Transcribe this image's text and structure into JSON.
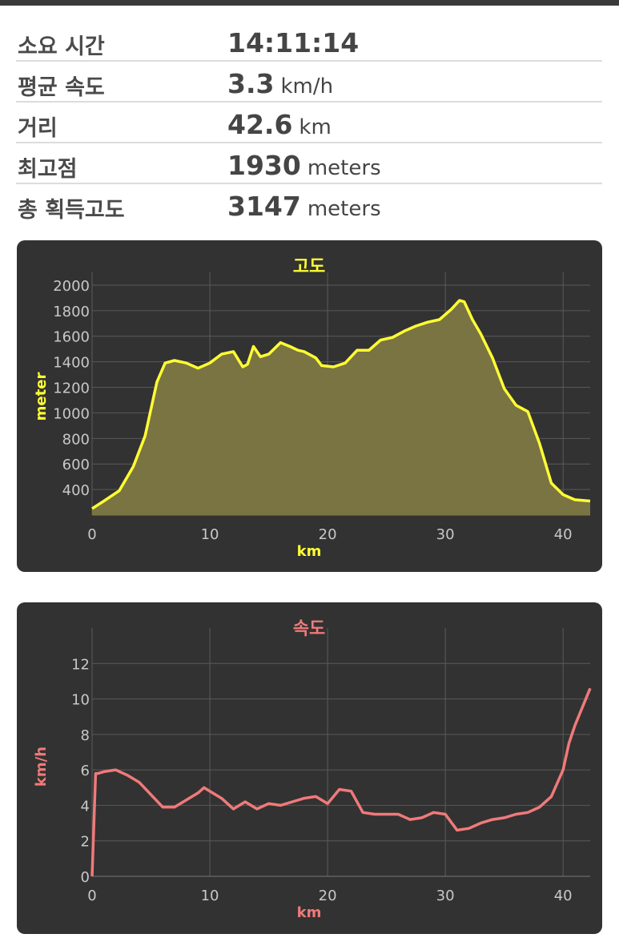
{
  "stats": [
    {
      "label": "소요 시간",
      "value": "14:11:14",
      "unit": ""
    },
    {
      "label": "평균 속도",
      "value": "3.3",
      "unit": "km/h"
    },
    {
      "label": "거리",
      "value": "42.6",
      "unit": "km"
    },
    {
      "label": "최고점",
      "value": "1930",
      "unit": "meters"
    },
    {
      "label": "총 획득고도",
      "value": "3147",
      "unit": "meters"
    }
  ],
  "colors": {
    "elevation_line": "#ffff33",
    "elevation_fill": "#7a7443",
    "speed_line": "#f07a7a",
    "panel_bg": "#323232"
  },
  "chart_data": [
    {
      "type": "area",
      "title": "고도",
      "xlabel": "km",
      "ylabel": "meter",
      "xlim": [
        0,
        42.3
      ],
      "ylim": [
        200,
        2100
      ],
      "xticks": [
        0,
        10,
        20,
        30,
        40
      ],
      "yticks": [
        400,
        600,
        800,
        1000,
        1200,
        1400,
        1600,
        1800,
        2000
      ],
      "grid": true,
      "x": [
        0,
        1,
        2.3,
        3.5,
        4.5,
        5.5,
        6.2,
        7,
        8,
        9,
        10,
        11,
        12,
        12.8,
        13.2,
        13.7,
        14.3,
        15,
        16,
        16.8,
        17.5,
        18,
        19,
        19.5,
        20.5,
        21.5,
        22.5,
        23.5,
        24.5,
        25.5,
        26.5,
        27.5,
        28.5,
        29.5,
        30.5,
        31.2,
        31.6,
        32.3,
        33,
        34,
        35,
        36,
        37,
        38,
        39,
        40,
        41,
        42.3
      ],
      "y": [
        250,
        310,
        390,
        580,
        820,
        1240,
        1390,
        1410,
        1390,
        1350,
        1390,
        1460,
        1480,
        1360,
        1380,
        1520,
        1440,
        1460,
        1550,
        1520,
        1490,
        1480,
        1430,
        1370,
        1360,
        1390,
        1490,
        1490,
        1570,
        1590,
        1640,
        1680,
        1710,
        1730,
        1810,
        1880,
        1870,
        1730,
        1620,
        1430,
        1190,
        1060,
        1010,
        760,
        450,
        360,
        320,
        310
      ]
    },
    {
      "type": "line",
      "title": "속도",
      "xlabel": "km",
      "ylabel": "km/h",
      "xlim": [
        0,
        42.3
      ],
      "ylim": [
        0,
        14
      ],
      "xticks": [
        0,
        10,
        20,
        30,
        40
      ],
      "yticks": [
        0,
        2,
        4,
        6,
        8,
        10,
        12
      ],
      "grid": true,
      "x": [
        0,
        0.3,
        0.5,
        1,
        2,
        3,
        4,
        5,
        6,
        7,
        8,
        9,
        9.5,
        10,
        11,
        12,
        13,
        14,
        15,
        16,
        17,
        18,
        19,
        20,
        21,
        22,
        23,
        24,
        25,
        26,
        27,
        28,
        29,
        30,
        31,
        32,
        33,
        34,
        35,
        36,
        37,
        38,
        39,
        40,
        40.5,
        41,
        42.3
      ],
      "y": [
        0,
        5.8,
        5.8,
        5.9,
        6.0,
        5.7,
        5.3,
        4.6,
        3.9,
        3.9,
        4.3,
        4.7,
        5.0,
        4.8,
        4.4,
        3.8,
        4.2,
        3.8,
        4.1,
        4.0,
        4.2,
        4.4,
        4.5,
        4.1,
        4.9,
        4.8,
        3.6,
        3.5,
        3.5,
        3.5,
        3.2,
        3.3,
        3.6,
        3.5,
        2.6,
        2.7,
        3.0,
        3.2,
        3.3,
        3.5,
        3.6,
        3.9,
        4.5,
        6.0,
        7.5,
        8.5,
        10.6
      ]
    }
  ]
}
